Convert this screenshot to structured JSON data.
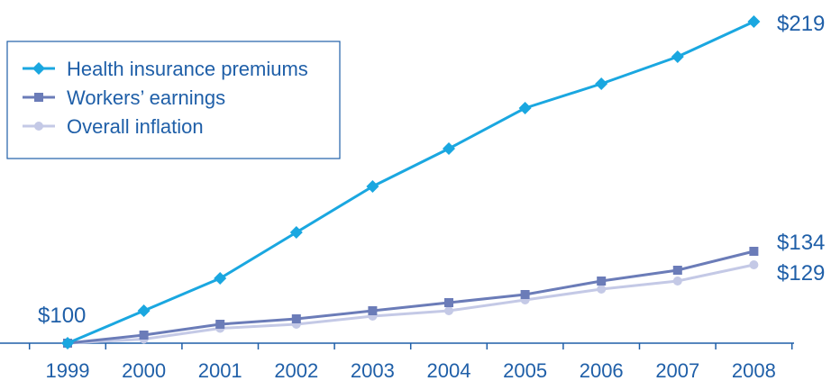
{
  "chart_data": {
    "type": "line",
    "x": [
      "1999",
      "2000",
      "2001",
      "2002",
      "2003",
      "2004",
      "2005",
      "2006",
      "2007",
      "2008"
    ],
    "series": [
      {
        "name": "Health insurance premiums",
        "values": [
          100,
          112,
          124,
          141,
          158,
          172,
          187,
          196,
          206,
          219
        ],
        "color": "#1aa7e0",
        "marker": "diamond"
      },
      {
        "name": "Workers’ earnings",
        "values": [
          100,
          103,
          107,
          109,
          112,
          115,
          118,
          123,
          127,
          134
        ],
        "color": "#6b7cb8",
        "marker": "square"
      },
      {
        "name": "Overall inflation",
        "values": [
          100,
          101.5,
          105.5,
          107,
          110,
          112,
          116,
          120,
          123,
          129
        ],
        "color": "#c4c9e6",
        "marker": "circle"
      }
    ],
    "annotations": {
      "start": "$100",
      "end": [
        "$219",
        "$134",
        "$129"
      ]
    },
    "ylim": [
      100,
      219
    ],
    "grid": false,
    "legend_position": "top-left"
  },
  "colors": {
    "text": "#1f5fa8",
    "axis": "#1f5fa8",
    "legend_border": "#1f5fa8"
  }
}
